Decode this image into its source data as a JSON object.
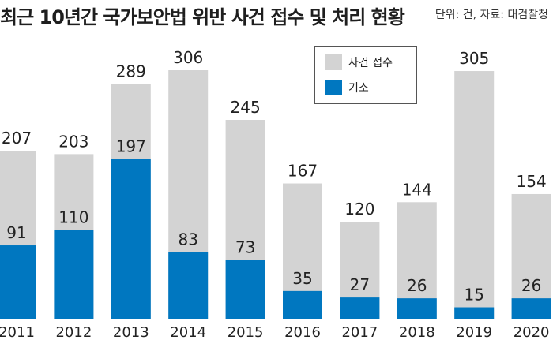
{
  "title": "최근 10년간 국가보안법 위반 사건 접수 및 처리 현황",
  "note": "단위: 건, 자료: 대검찰청",
  "colors": {
    "received": "#d3d3d3",
    "indicted": "#0077c0"
  },
  "chart_data": {
    "type": "bar",
    "categories": [
      "2011",
      "2012",
      "2013",
      "2014",
      "2015",
      "2016",
      "2017",
      "2018",
      "2019",
      "2020"
    ],
    "series": [
      {
        "name": "사건 접수",
        "values": [
          207,
          203,
          289,
          306,
          245,
          167,
          120,
          144,
          305,
          154
        ]
      },
      {
        "name": "기소",
        "values": [
          91,
          110,
          197,
          83,
          73,
          35,
          27,
          26,
          15,
          26
        ]
      }
    ],
    "ylim": [
      0,
      306
    ],
    "grid": false,
    "legend": "top-center"
  }
}
